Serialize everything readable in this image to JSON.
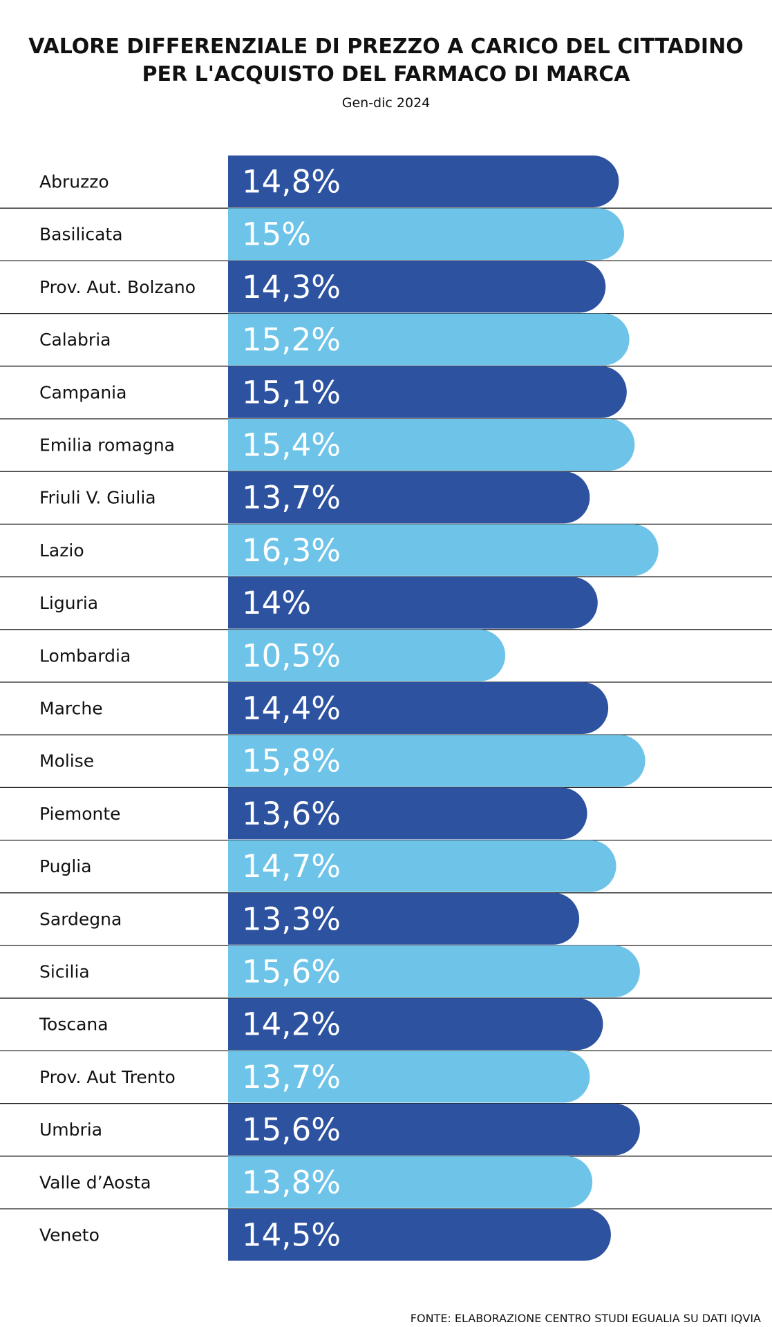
{
  "header": {
    "title_line1": "VALORE DIFFERENZIALE DI PREZZO A CARICO DEL CITTADINO",
    "title_line2": "PER L'ACQUISTO DEL FARMACO DI MARCA",
    "subtitle": "Gen-dic 2024"
  },
  "footer": {
    "source": "FONTE: ELABORAZIONE CENTRO STUDI EGUALIA SU DATI IQVIA"
  },
  "colors": {
    "dark_bar": "#2d52a0",
    "light_bar": "#6ec4e8",
    "row_line": "#222222"
  },
  "chart_data": {
    "type": "bar",
    "orientation": "horizontal",
    "title": "VALORE DIFFERENZIALE DI PREZZO A CARICO DEL CITTADINO PER L'ACQUISTO DEL FARMACO DI MARCA",
    "subtitle": "Gen-dic 2024",
    "xlabel": "",
    "ylabel": "",
    "grid": false,
    "categories": [
      "Abruzzo",
      "Basilicata",
      "Prov. Aut. Bolzano",
      "Calabria",
      "Campania",
      "Emilia romagna",
      "Friuli V. Giulia",
      "Lazio",
      "Liguria",
      "Lombardia",
      "Marche",
      "Molise",
      "Piemonte",
      "Puglia",
      "Sardegna",
      "Sicilia",
      "Toscana",
      "Prov. Aut Trento",
      "Umbria",
      "Valle d’Aosta",
      "Veneto"
    ],
    "values": [
      14.8,
      15,
      14.3,
      15.2,
      15.1,
      15.4,
      13.7,
      16.3,
      14,
      10.5,
      14.4,
      15.8,
      13.6,
      14.7,
      13.3,
      15.6,
      14.2,
      13.7,
      15.6,
      13.8,
      14.5
    ],
    "value_labels": [
      "14,8%",
      "15%",
      "14,3%",
      "15,2%",
      "15,1%",
      "15,4%",
      "13,7%",
      "16,3%",
      "14%",
      "10,5%",
      "14,4%",
      "15,8%",
      "13,6%",
      "14,7%",
      "13,3%",
      "15,6%",
      "14,2%",
      "13,7%",
      "15,6%",
      "13,8%",
      "14,5%"
    ],
    "bar_colors": [
      "dark",
      "light",
      "dark",
      "light",
      "dark",
      "light",
      "dark",
      "light",
      "dark",
      "light",
      "dark",
      "light",
      "dark",
      "light",
      "dark",
      "light",
      "dark",
      "light",
      "dark",
      "light",
      "dark"
    ]
  }
}
